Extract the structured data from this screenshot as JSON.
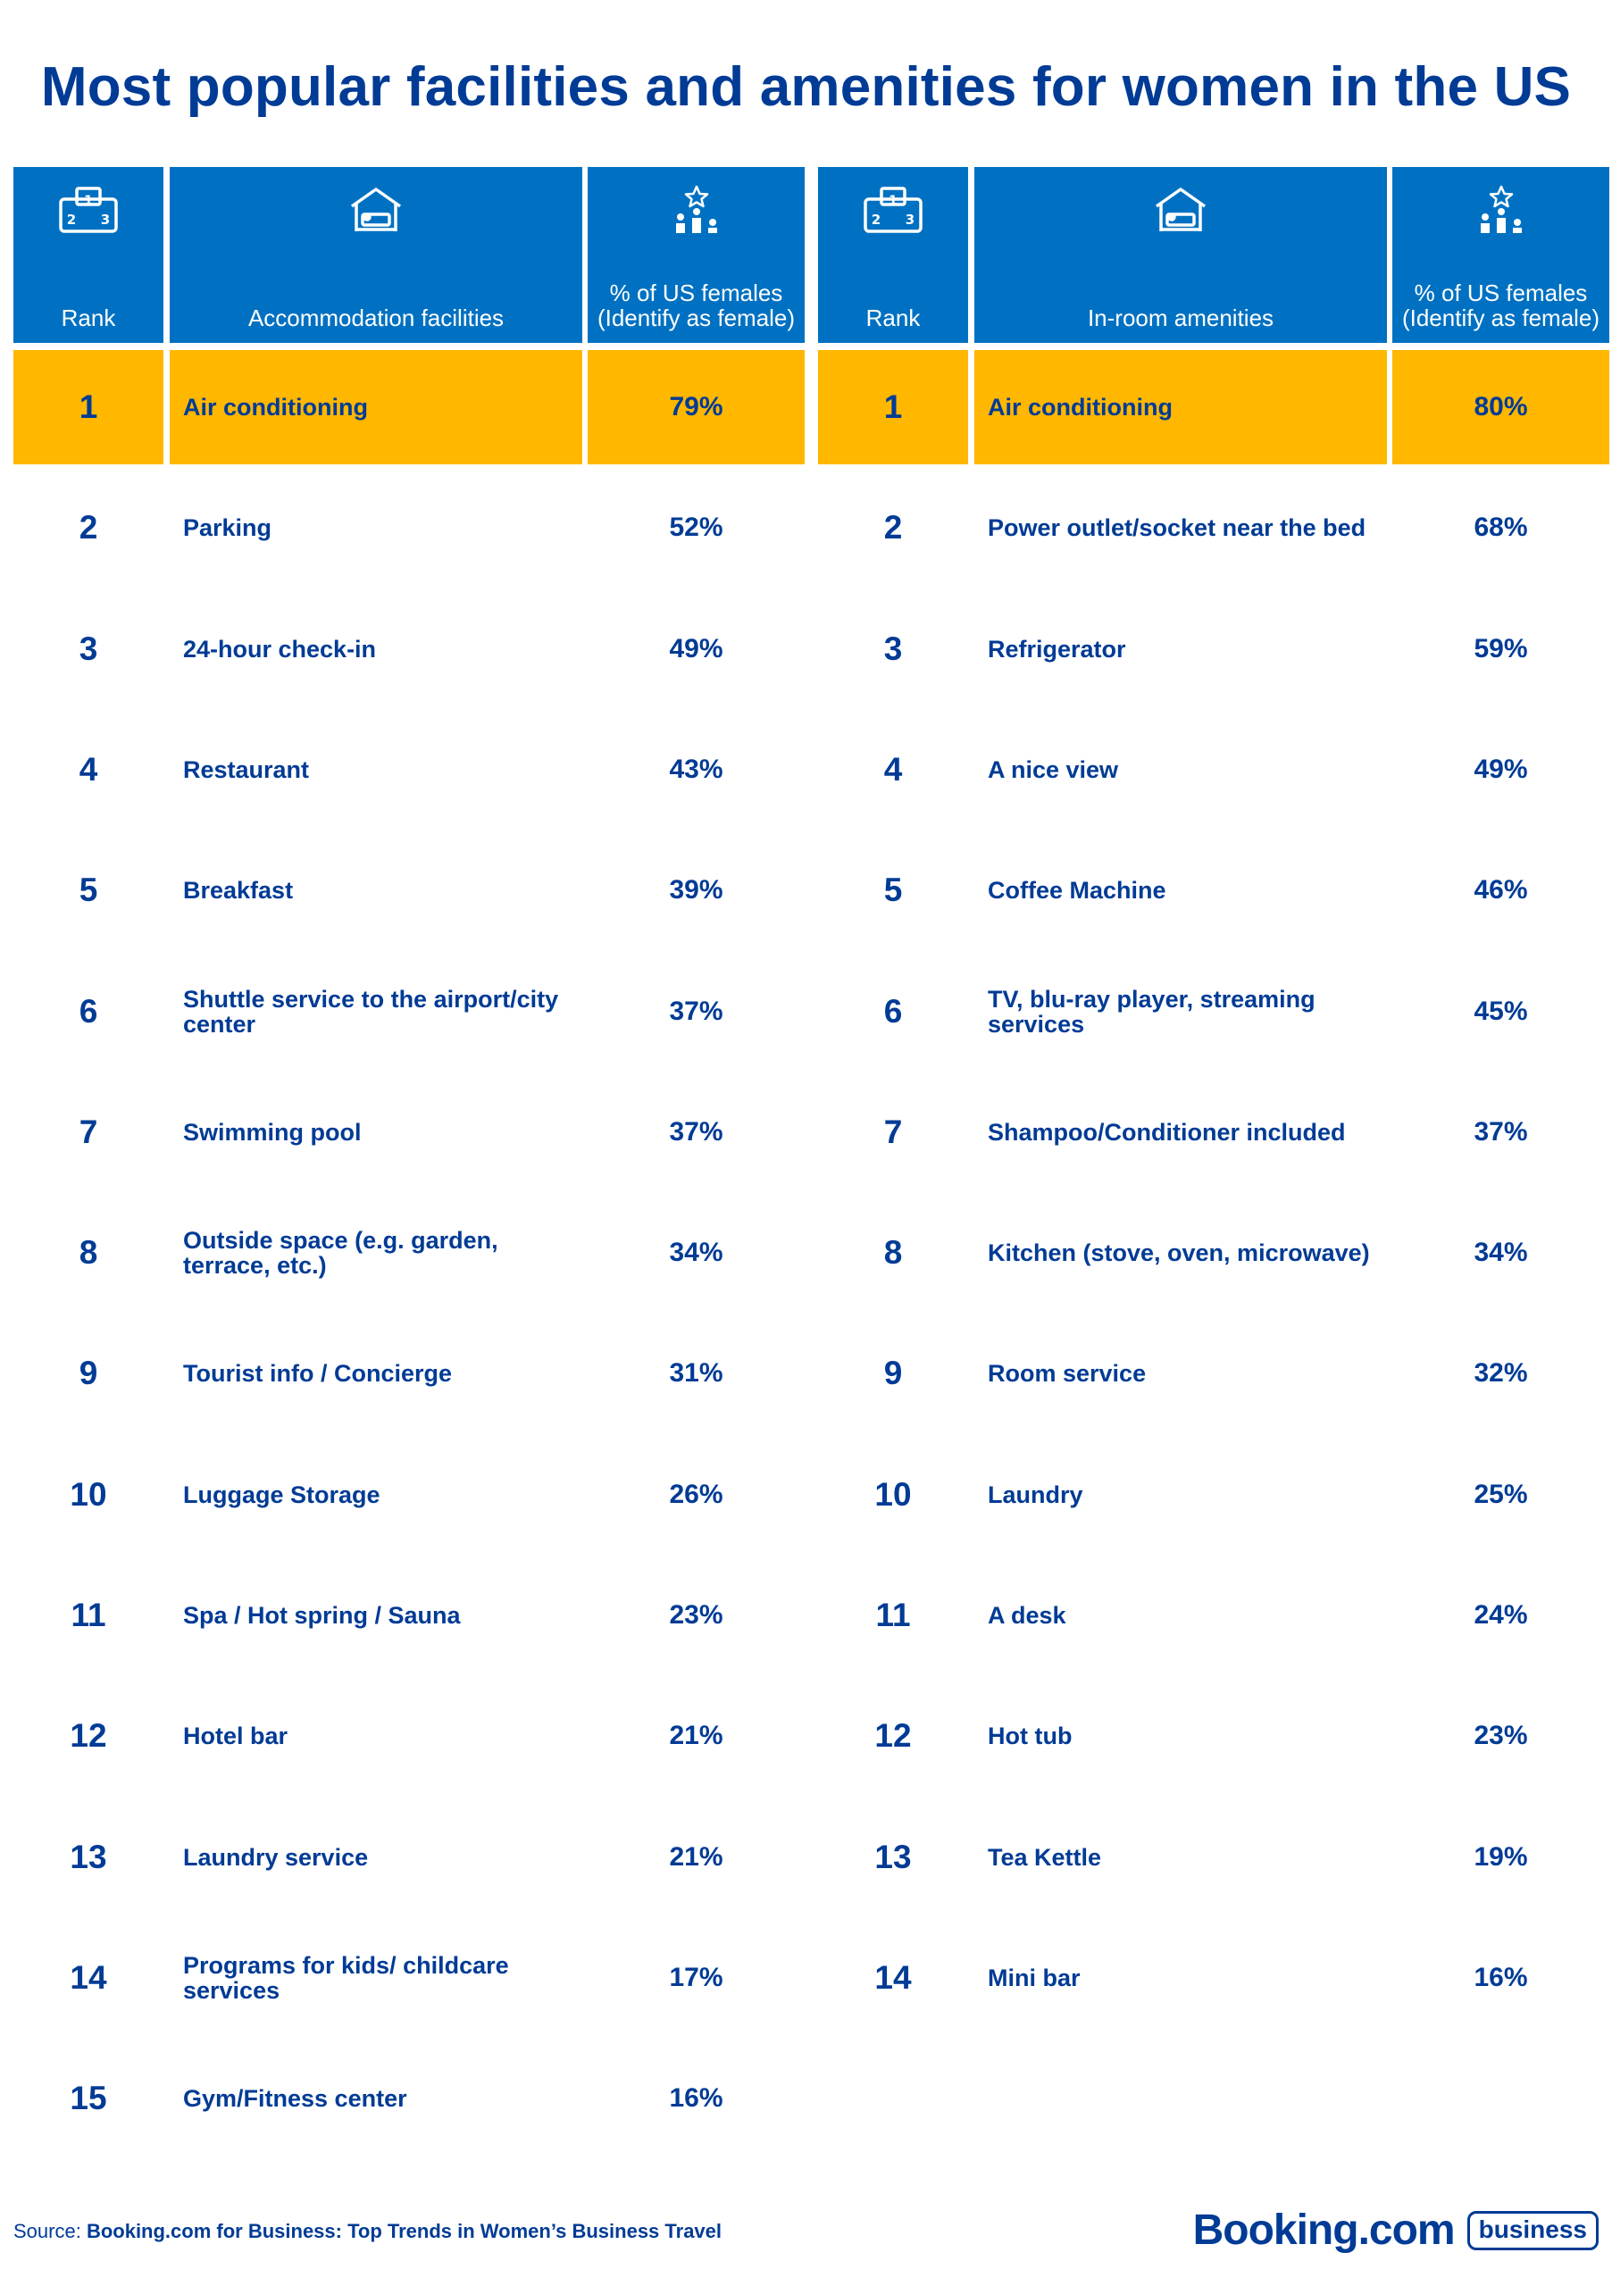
{
  "title": "Most popular facilities and amenities for women in the US",
  "colors": {
    "header_bg": "#0071c2",
    "highlight": "#ffb700",
    "text": "#003b95",
    "background": "#ffffff"
  },
  "icons": [
    "podium-rank-icon",
    "hotel-bed-icon",
    "podium-star-icon"
  ],
  "chart_data": [
    {
      "type": "table",
      "columns": [
        "Rank",
        "Accommodation facilities",
        "% of US females (Identify as female)"
      ],
      "rows": [
        {
          "rank": "1",
          "name": "Air conditioning",
          "value": "79%"
        },
        {
          "rank": "2",
          "name": "Parking",
          "value": "52%"
        },
        {
          "rank": "3",
          "name": "24-hour check-in",
          "value": "49%"
        },
        {
          "rank": "4",
          "name": "Restaurant",
          "value": "43%"
        },
        {
          "rank": "5",
          "name": "Breakfast",
          "value": "39%"
        },
        {
          "rank": "6",
          "name": "Shuttle service to the airport/city center",
          "value": "37%"
        },
        {
          "rank": "7",
          "name": "Swimming pool",
          "value": "37%"
        },
        {
          "rank": "8",
          "name": "Outside space (e.g. garden, terrace, etc.)",
          "value": "34%"
        },
        {
          "rank": "9",
          "name": "Tourist info / Concierge",
          "value": "31%"
        },
        {
          "rank": "10",
          "name": "Luggage Storage",
          "value": "26%"
        },
        {
          "rank": "11",
          "name": "Spa / Hot spring / Sauna",
          "value": "23%"
        },
        {
          "rank": "12",
          "name": "Hotel bar",
          "value": "21%"
        },
        {
          "rank": "13",
          "name": "Laundry service",
          "value": "21%"
        },
        {
          "rank": "14",
          "name": "Programs for kids/ childcare services",
          "value": "17%"
        },
        {
          "rank": "15",
          "name": "Gym/Fitness center",
          "value": "16%"
        }
      ]
    },
    {
      "type": "table",
      "columns": [
        "Rank",
        "In-room amenities",
        "% of US females (Identify as female)"
      ],
      "rows": [
        {
          "rank": "1",
          "name": "Air conditioning",
          "value": "80%"
        },
        {
          "rank": "2",
          "name": "Power outlet/socket near the bed",
          "value": "68%"
        },
        {
          "rank": "3",
          "name": "Refrigerator",
          "value": "59%"
        },
        {
          "rank": "4",
          "name": "A nice view",
          "value": "49%"
        },
        {
          "rank": "5",
          "name": "Coffee Machine",
          "value": "46%"
        },
        {
          "rank": "6",
          "name": "TV, blu-ray player, streaming services",
          "value": "45%"
        },
        {
          "rank": "7",
          "name": "Shampoo/Conditioner included",
          "value": "37%"
        },
        {
          "rank": "8",
          "name": "Kitchen (stove, oven, microwave)",
          "value": "34%"
        },
        {
          "rank": "9",
          "name": "Room service",
          "value": "32%"
        },
        {
          "rank": "10",
          "name": "Laundry",
          "value": "25%"
        },
        {
          "rank": "11",
          "name": "A desk",
          "value": "24%"
        },
        {
          "rank": "12",
          "name": "Hot tub",
          "value": "23%"
        },
        {
          "rank": "13",
          "name": "Tea Kettle",
          "value": "19%"
        },
        {
          "rank": "14",
          "name": "Mini bar",
          "value": "16%"
        }
      ]
    }
  ],
  "footer": {
    "source_label": "Source: ",
    "source_text": "Booking.com for Business: Top Trends in Women’s Business Travel",
    "brand": "Booking.com",
    "badge": "business"
  }
}
